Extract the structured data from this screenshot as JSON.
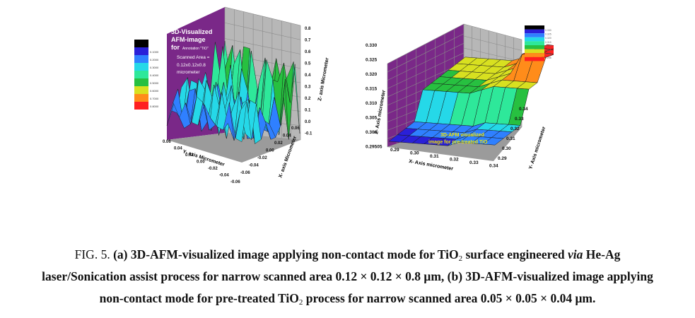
{
  "figure_a": {
    "title_lines": [
      "3D-Visualized",
      "AFM-image",
      "for",
      "Scanned Area =",
      "0.12x0.12x0.8",
      "micrometer"
    ],
    "title_small": "Annotation \"TiO\"",
    "z_axis_label": "Z- axis  Micrometer",
    "y_axis_label": "Y- axis  Micrometer",
    "x_axis_label": "X- axis  Micrometer",
    "z_ticks": [
      "0.8",
      "0.7",
      "0.6",
      "0.5",
      "0.4",
      "0.3",
      "0.2",
      "0.1",
      "0.0",
      "-0.1"
    ],
    "y_ticks": [
      "0.06",
      "0.04",
      "0.02",
      "0.00",
      "-0.02",
      "-0.04",
      "-0.06"
    ],
    "x_ticks": [
      "0.06",
      "0.04",
      "0.02",
      "0.00",
      "-0.02",
      "-0.04",
      "-0.06"
    ],
    "legend_values": [
      "0.1000",
      "0.2000",
      "0.3000",
      "0.4000",
      "0.5000",
      "0.6000",
      "0.7000",
      "0.8000"
    ],
    "legend_colors": [
      "#000000",
      "#2a20d8",
      "#2f80ff",
      "#25d8e8",
      "#2ee89a",
      "#27c040",
      "#d8e020",
      "#ff8c1a",
      "#ff2020"
    ]
  },
  "figure_b": {
    "z_axis_label": "Z- Axis micrometer",
    "x_axis_label": "X- Axis micrometer",
    "y_axis_label": "Y- Axis micrometer",
    "z_ticks": [
      "0.330",
      "0.325",
      "0.320",
      "0.315",
      "0.310",
      "0.305",
      "0.300",
      "0.29505"
    ],
    "x_ticks": [
      "0.29",
      "0.30",
      "0.31",
      "0.32",
      "0.33",
      "0.34"
    ],
    "y_ticks": [
      "0.34",
      "0.33",
      "0.32",
      "0.31",
      "0.30",
      "0.29"
    ],
    "annotation_line1": "3D-AFM visualized",
    "annotation_line2": "image for pre-treated TiO",
    "legend_values": [
      "0.330",
      "0.325",
      "0.320",
      "0.315",
      "0.310",
      "0.305",
      "0.300",
      "0.295"
    ],
    "legend_colors": [
      "#000000",
      "#2a20d8",
      "#2f80ff",
      "#25d8e8",
      "#2ee89a",
      "#27c040",
      "#d8e020",
      "#ff8c1a",
      "#ff2020"
    ]
  },
  "caption": {
    "fig_label": "FIG. 5.",
    "line1_a": "(a) 3D-AFM-visualized image applying non-contact mode for TiO",
    "line1_sub": "2",
    "line1_b": " surface engineered ",
    "line1_via": "via",
    "line1_c": " He-Ag",
    "line2": "laser/Sonication assist process for narrow scanned area 0.12 × 0.12 × 0.8 μm, (b) 3D-AFM-visualized image applying",
    "line3_a": "non-contact mode for pre-treated TiO",
    "line3_sub": "2",
    "line3_b": " process for narrow scanned area 0.05 × 0.05 × 0.04 μm."
  }
}
